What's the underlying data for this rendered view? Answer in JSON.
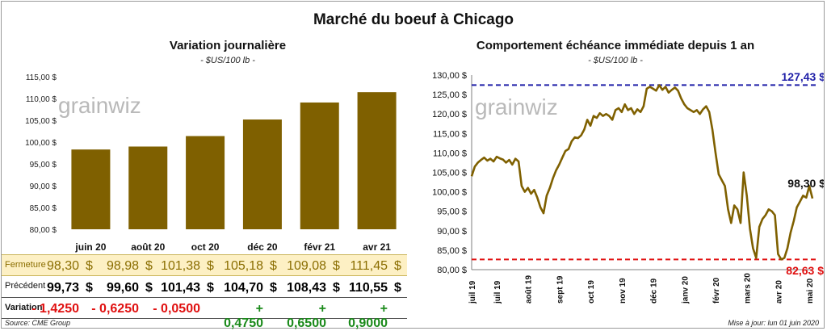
{
  "main_title": "Marché du boeuf à Chicago",
  "left_chart": {
    "title": "Variation journalière",
    "subtitle": "- $US/100 lb -",
    "watermark": "grainwiz"
  },
  "right_chart": {
    "title": "Comportement échéance immédiate depuis 1 an",
    "subtitle": "- $US/100 lb -",
    "watermark": "grainwiz",
    "annotations": {
      "max": "127,43 $",
      "min": "82,63 $",
      "last": "98,30 $"
    }
  },
  "table": {
    "rows": [
      {
        "label": "Fermeture",
        "values": [
          "98,30",
          "98,98",
          "101,38",
          "105,18",
          "109,08",
          "111,45"
        ],
        "unit": "$"
      },
      {
        "label": "Précédent",
        "values": [
          "99,73",
          "99,60",
          "101,43",
          "104,70",
          "108,43",
          "110,55"
        ],
        "unit": "$"
      },
      {
        "label": "Variation",
        "values": [
          "- 1,4250",
          "- 0,6250",
          "- 0,0500",
          "+ 0,4750",
          "+ 0,6500",
          "+ 0,9000"
        ],
        "unit": ""
      }
    ]
  },
  "footer": {
    "source": "Source: CME Group",
    "update": "Mise à jour: lun 01 juin 2020"
  },
  "colors": {
    "bar": "#7f6000",
    "line": "#7f6000",
    "max_line": "#1f1fa8",
    "min_line": "#e01010",
    "highlight_row": "#fdf0c4",
    "negative": "#e01010",
    "positive": "#1a8a1a"
  },
  "chart_data": [
    {
      "type": "bar",
      "categories": [
        "juin 20",
        "août 20",
        "oct 20",
        "déc 20",
        "févr 21",
        "avr 21"
      ],
      "values": [
        98.3,
        98.98,
        101.38,
        105.18,
        109.08,
        111.45
      ],
      "ylim": [
        80,
        115
      ],
      "yticks": [
        "80,00 $",
        "85,00 $",
        "90,00 $",
        "95,00 $",
        "100,00 $",
        "105,00 $",
        "110,00 $",
        "115,00 $"
      ],
      "title": "Variation journalière",
      "subtitle": "- $US/100 lb -",
      "grid": false
    },
    {
      "type": "line",
      "title": "Comportement échéance immédiate depuis 1 an",
      "subtitle": "- $US/100 lb -",
      "ylim": [
        80,
        130
      ],
      "yticks": [
        "80,00 $",
        "85,00 $",
        "90,00 $",
        "95,00 $",
        "100,00 $",
        "105,00 $",
        "110,00 $",
        "115,00 $",
        "120,00 $",
        "125,00 $",
        "130,00 $"
      ],
      "xticks": [
        "juil 19",
        "juil 19",
        "août 19",
        "sept 19",
        "oct 19",
        "nov 19",
        "déc 19",
        "janv 20",
        "févr 20",
        "mars 20",
        "avr 20",
        "mai 20"
      ],
      "xtick_positions": [
        0,
        8,
        18,
        28,
        38,
        48,
        58,
        68,
        78,
        88,
        98,
        108
      ],
      "x_count": 110,
      "series": [
        {
          "values": [
            104.0,
            106.5,
            107.5,
            108.2,
            108.8,
            108.0,
            108.5,
            107.8,
            109.0,
            108.6,
            108.3,
            107.5,
            108.2,
            107.0,
            108.5,
            107.8,
            101.5,
            100.0,
            101.0,
            99.5,
            100.5,
            98.5,
            96.0,
            94.5,
            99.0,
            101.0,
            103.5,
            105.5,
            107.0,
            108.8,
            110.5,
            111.0,
            113.0,
            114.0,
            113.8,
            114.5,
            116.0,
            118.5,
            117.0,
            119.5,
            119.0,
            120.2,
            119.5,
            120.0,
            119.5,
            118.5,
            121.0,
            121.5,
            120.5,
            122.5,
            121.0,
            121.5,
            120.0,
            121.2,
            120.5,
            122.0,
            126.5,
            127.0,
            126.5,
            126.0,
            127.4,
            126.2,
            127.0,
            125.5,
            126.2,
            126.8,
            126.0,
            124.0,
            122.5,
            121.5,
            121.0,
            120.5,
            121.0,
            120.0,
            121.2,
            122.0,
            120.5,
            116.0,
            110.0,
            104.5,
            103.0,
            101.5,
            95.5,
            92.0,
            96.5,
            95.5,
            92.0,
            105.0,
            99.0,
            90.5,
            85.5,
            83.0,
            91.0,
            93.0,
            94.0,
            95.5,
            95.0,
            94.0,
            84.0,
            82.63,
            83.0,
            85.5,
            89.5,
            92.5,
            96.0,
            97.5,
            99.0,
            98.5,
            101.5,
            98.3
          ]
        }
      ],
      "reference_lines": [
        {
          "label": "127,43 $",
          "value": 127.43
        },
        {
          "label": "82,63 $",
          "value": 82.63
        }
      ],
      "grid": false
    }
  ]
}
